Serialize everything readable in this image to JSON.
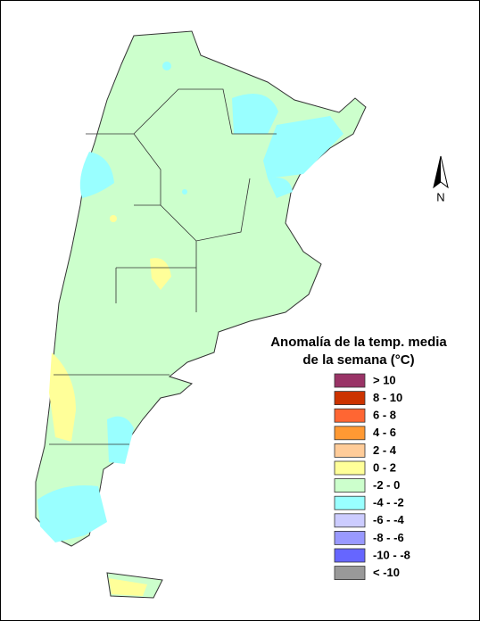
{
  "legend": {
    "title": [
      "Anomalía de la temp. media",
      "de la semana (°C)"
    ],
    "items": [
      {
        "label": "> 10",
        "color": "#993366"
      },
      {
        "label": "8 - 10",
        "color": "#cc3300"
      },
      {
        "label": "6 - 8",
        "color": "#ff6633"
      },
      {
        "label": "4 - 6",
        "color": "#ff9933"
      },
      {
        "label": "2 - 4",
        "color": "#ffcc99"
      },
      {
        "label": "0 - 2",
        "color": "#ffff99"
      },
      {
        "label": "-2 - 0",
        "color": "#ccffcc"
      },
      {
        "label": "-4 - -2",
        "color": "#99ffff"
      },
      {
        "label": "-6 - -4",
        "color": "#ccccff"
      },
      {
        "label": "-8 - -6",
        "color": "#9999ff"
      },
      {
        "label": "-10 - -8",
        "color": "#6666ff"
      },
      {
        "label": "< -10",
        "color": "#999999"
      }
    ]
  },
  "north_label": "N"
}
